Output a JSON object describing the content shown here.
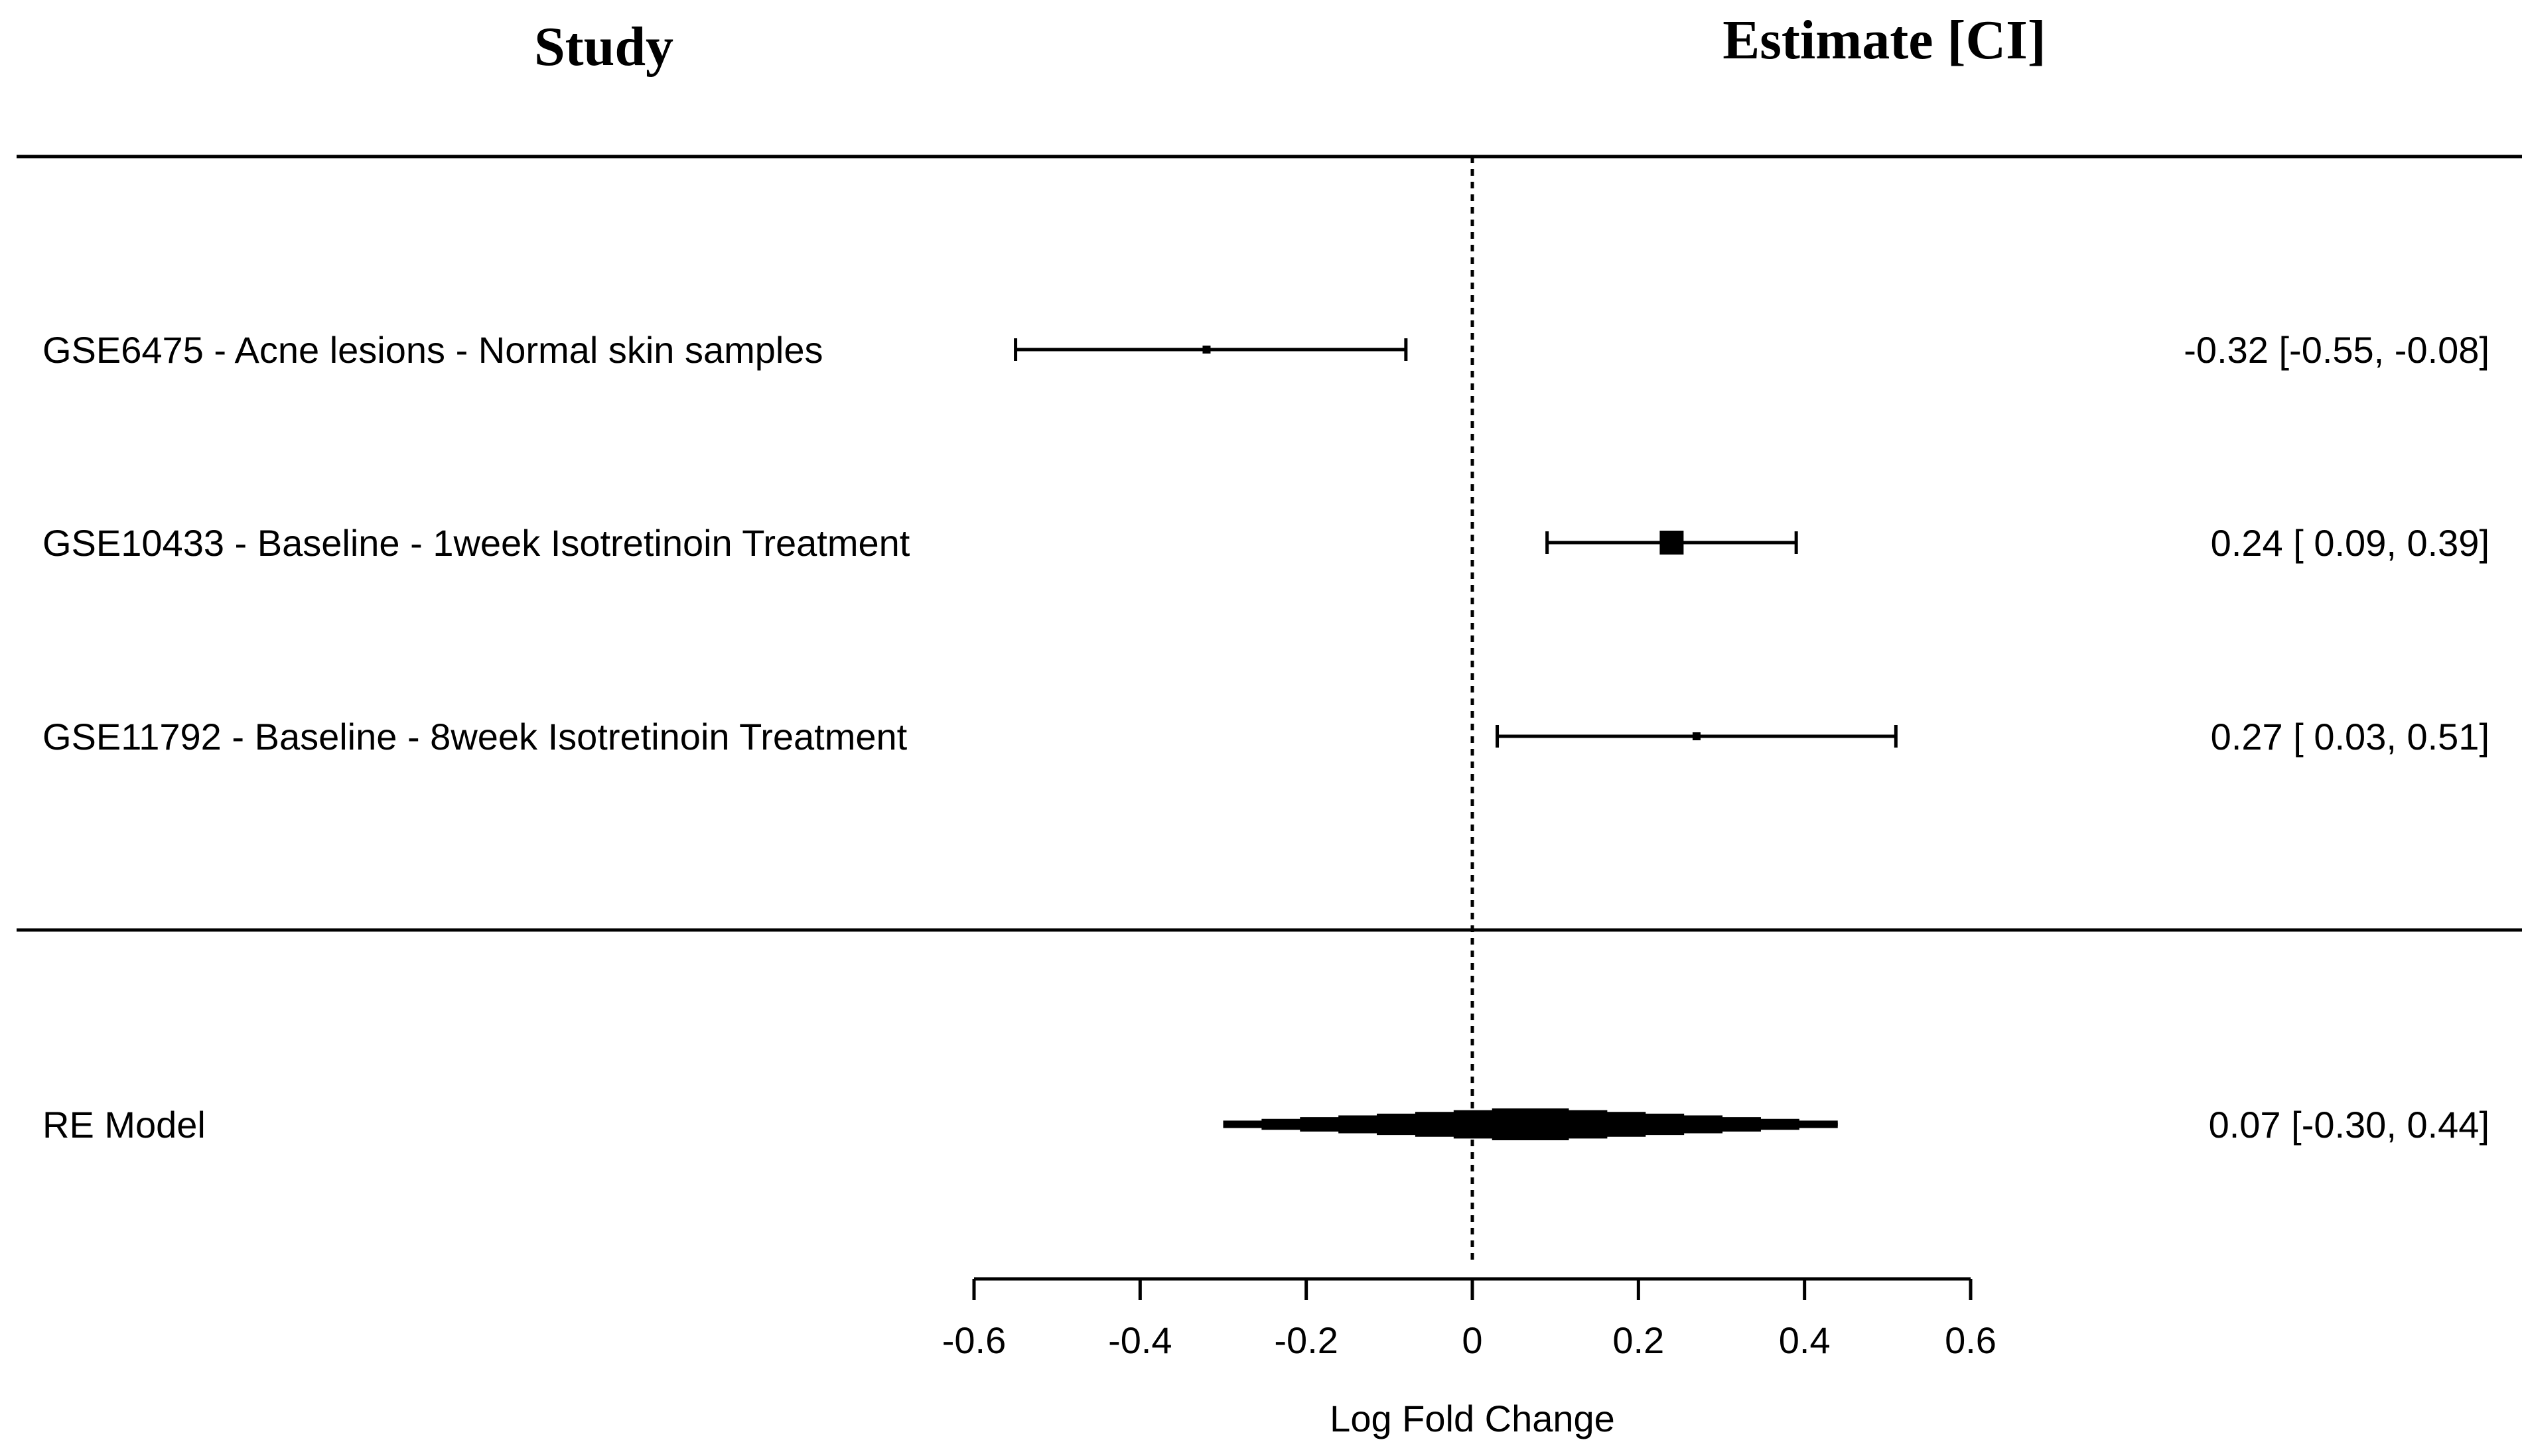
{
  "chart_data": {
    "type": "forest",
    "header": {
      "study": "Study",
      "estimate": "Estimate [CI]"
    },
    "xlabel": "Log Fold Change",
    "xlim": [
      -0.6,
      0.6
    ],
    "xticks": [
      -0.6,
      -0.4,
      -0.2,
      0,
      0.2,
      0.4,
      0.6
    ],
    "xtick_labels": [
      "-0.6",
      "-0.4",
      "-0.2",
      "0",
      "0.2",
      "0.4",
      "0.6"
    ],
    "reference_line": 0,
    "studies": [
      {
        "label": "GSE6475 - Acne lesions - Normal skin samples",
        "estimate": -0.32,
        "lower": -0.55,
        "upper": -0.08,
        "weight": 0.4,
        "text": "-0.32 [-0.55, -0.08]"
      },
      {
        "label": "GSE10433 - Baseline - 1week Isotretinoin Treatment",
        "estimate": 0.24,
        "lower": 0.09,
        "upper": 0.39,
        "weight": 1.0,
        "text": "0.24 [ 0.09,  0.39]"
      },
      {
        "label": "GSE11792 - Baseline - 8week Isotretinoin Treatment",
        "estimate": 0.27,
        "lower": 0.03,
        "upper": 0.51,
        "weight": 0.4,
        "text": "0.27 [ 0.03,  0.51]"
      }
    ],
    "summary": {
      "label": "RE Model",
      "estimate": 0.07,
      "lower": -0.3,
      "upper": 0.44,
      "text": "0.07 [-0.30,  0.44]"
    }
  }
}
